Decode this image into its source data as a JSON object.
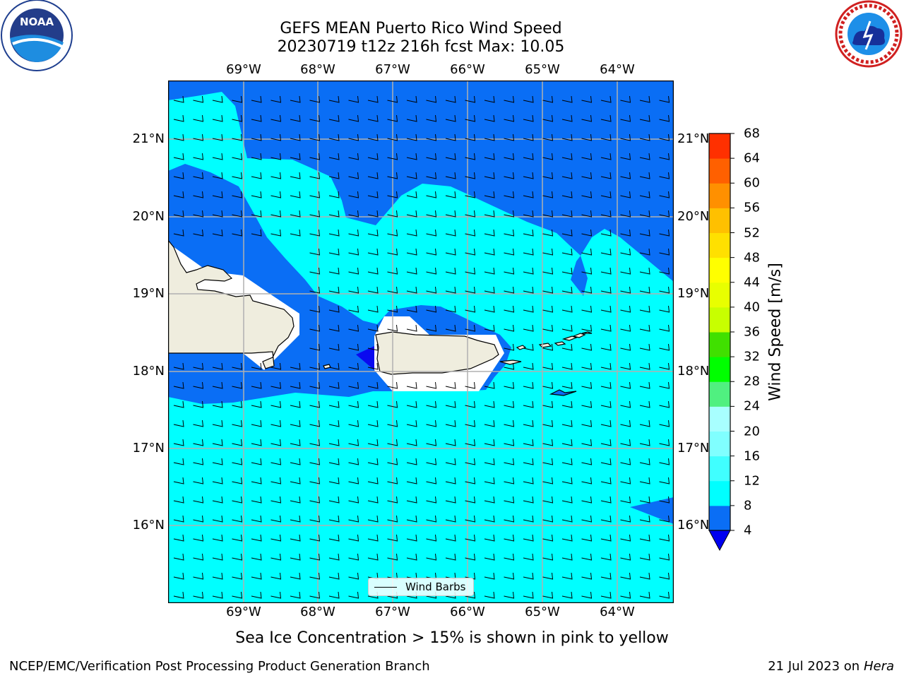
{
  "title": {
    "line1": "GEFS MEAN Puerto Rico Wind Speed",
    "line2": "20230719 t12z 216h fcst   Max: 10.05"
  },
  "logos": {
    "left": {
      "icon": "noaa-logo",
      "text": "NOAA",
      "ring_text": "NATIONAL OCEANIC AND ATMOSPHERIC ADMINISTRATION · U.S. DEPARTMENT OF COMMERCE"
    },
    "right": {
      "icon": "nws-logo",
      "ring_text": "NATIONAL WEATHER SERVICE"
    }
  },
  "map": {
    "lon_labels": [
      "69°W",
      "68°W",
      "67°W",
      "66°W",
      "65°W",
      "64°W"
    ],
    "lat_labels": [
      "21°N",
      "20°N",
      "19°N",
      "18°N",
      "17°N",
      "16°N"
    ],
    "legend_label": "Wind Barbs",
    "colors": {
      "light_cyan": "#00ffff",
      "blue": "#0a6ef5",
      "deep_blue": "#0a0af0",
      "land": "#efedde",
      "calm": "#ffffff",
      "grid": "#b0b0b0"
    }
  },
  "colorbar": {
    "label": "Wind Speed [m/s]",
    "ticks": [
      "68",
      "64",
      "60",
      "56",
      "52",
      "48",
      "44",
      "40",
      "36",
      "32",
      "28",
      "24",
      "20",
      "16",
      "12",
      "8",
      "4"
    ],
    "levels": [
      4,
      8,
      12,
      16,
      20,
      24,
      28,
      32,
      36,
      40,
      44,
      48,
      52,
      56,
      60,
      64,
      68
    ],
    "colors": [
      "#0a6ef5",
      "#00ffff",
      "#40ffff",
      "#80ffff",
      "#a8ffff",
      "#50f080",
      "#00ff00",
      "#40e000",
      "#c8ff00",
      "#e8ff00",
      "#ffff00",
      "#ffe000",
      "#ffc000",
      "#ff9000",
      "#ff6000",
      "#ff3000",
      "#ff0000"
    ],
    "under_color": "#0000f0"
  },
  "footer": {
    "note": "Sea Ice Concentration > 15% is shown in pink to yellow",
    "left": "NCEP/EMC/Verification Post Processing Product Generation Branch",
    "right_date": "21 Jul 2023 on ",
    "right_machine": "Hera"
  }
}
